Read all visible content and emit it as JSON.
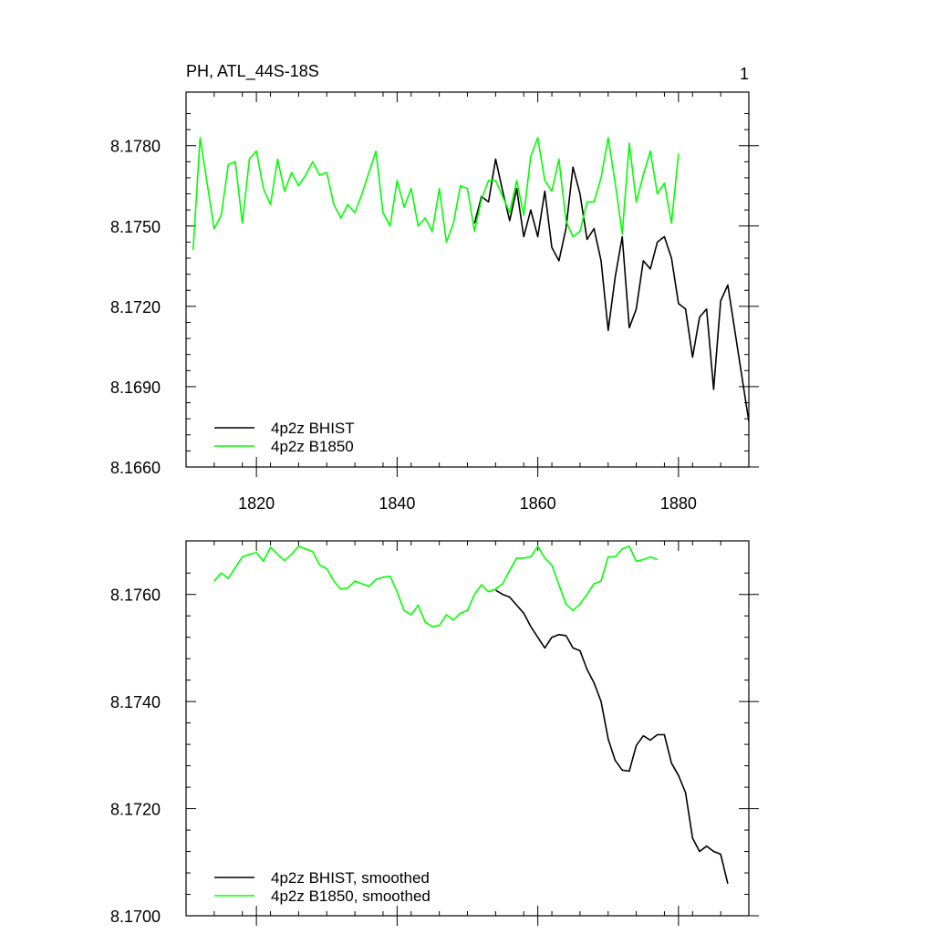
{
  "header": {
    "title": "PH, ATL_44S-18S",
    "page_number": "1"
  },
  "chart_data": [
    {
      "type": "line",
      "title": "PH, ATL_44S-18S",
      "xlabel": "",
      "ylabel": "",
      "xlim": [
        1810,
        1890
      ],
      "ylim": [
        8.166,
        8.18
      ],
      "x_ticks": [
        1820,
        1840,
        1860,
        1880
      ],
      "x_tick_labels": [
        "1820",
        "1840",
        "1860",
        "1880"
      ],
      "y_ticks": [
        8.166,
        8.169,
        8.172,
        8.175,
        8.178
      ],
      "y_tick_labels": [
        "8.1660",
        "8.1690",
        "8.1720",
        "8.1750",
        "8.1780"
      ],
      "legend_position": "bottom-left",
      "series": [
        {
          "name": "4p2z BHIST",
          "color": "#000000",
          "x_start": 1851,
          "values": [
            8.1751,
            8.1761,
            8.1759,
            8.1775,
            8.1763,
            8.1752,
            8.1764,
            8.1746,
            8.1756,
            8.1746,
            8.1763,
            8.1742,
            8.1737,
            8.1749,
            8.1772,
            8.1762,
            8.1745,
            8.1749,
            8.1737,
            8.1711,
            8.1731,
            8.1746,
            8.1712,
            8.1719,
            8.1737,
            8.1734,
            8.1744,
            8.1746,
            8.1738,
            8.1721,
            8.1719,
            8.1701,
            8.1716,
            8.1719,
            8.1689,
            8.1722,
            8.1728,
            8.1711,
            8.1694,
            8.1677
          ]
        },
        {
          "name": "4p2z B1850",
          "color": "#00ff00",
          "x_start": 1811,
          "values": [
            8.1741,
            8.1783,
            8.1766,
            8.1749,
            8.1754,
            8.1773,
            8.1774,
            8.1751,
            8.1775,
            8.1778,
            8.1764,
            8.1758,
            8.1775,
            8.1763,
            8.177,
            8.1765,
            8.1769,
            8.1774,
            8.1769,
            8.177,
            8.1758,
            8.1753,
            8.1758,
            8.1755,
            8.1762,
            8.177,
            8.1778,
            8.1755,
            8.175,
            8.1767,
            8.1757,
            8.1764,
            8.175,
            8.1753,
            8.1748,
            8.1764,
            8.1744,
            8.1751,
            8.1765,
            8.1764,
            8.1748,
            8.176,
            8.1767,
            8.1767,
            8.1761,
            8.1755,
            8.1767,
            8.1754,
            8.1776,
            8.1783,
            8.1767,
            8.1763,
            8.1775,
            8.1752,
            8.1746,
            8.1748,
            8.1759,
            8.1759,
            8.1768,
            8.1783,
            8.1766,
            8.1747,
            8.1781,
            8.1759,
            8.1769,
            8.1778,
            8.1762,
            8.1766,
            8.1751,
            8.1777
          ]
        }
      ]
    },
    {
      "type": "line",
      "title": "",
      "xlabel": "",
      "ylabel": "",
      "xlim": [
        1810,
        1890
      ],
      "ylim": [
        8.17,
        8.177
      ],
      "x_ticks": [
        1820,
        1840,
        1860,
        1880
      ],
      "x_tick_labels": [],
      "y_ticks": [
        8.17,
        8.172,
        8.174,
        8.176
      ],
      "y_tick_labels": [
        "8.1700",
        "8.1720",
        "8.1740",
        "8.1760"
      ],
      "legend_position": "bottom-left",
      "series": [
        {
          "name": "4p2z BHIST, smoothed",
          "color": "#000000",
          "x_start": 1854,
          "values": [
            8.17608,
            8.176,
            8.17595,
            8.1758,
            8.17565,
            8.1754,
            8.1752,
            8.175,
            8.1752,
            8.17525,
            8.17523,
            8.175,
            8.17495,
            8.1746,
            8.17435,
            8.174,
            8.1733,
            8.1729,
            8.17272,
            8.1727,
            8.17318,
            8.17336,
            8.17328,
            8.17338,
            8.17338,
            8.17285,
            8.17262,
            8.1723,
            8.17145,
            8.1712,
            8.1713,
            8.1712,
            8.17115,
            8.1706
          ]
        },
        {
          "name": "4p2z B1850, smoothed",
          "color": "#00ff00",
          "x_start": 1814,
          "values": [
            8.17625,
            8.1764,
            8.1763,
            8.1765,
            8.1767,
            8.17675,
            8.17678,
            8.17662,
            8.17688,
            8.17675,
            8.17663,
            8.17675,
            8.1769,
            8.17685,
            8.1768,
            8.17655,
            8.17648,
            8.17625,
            8.1761,
            8.17612,
            8.17625,
            8.1762,
            8.17615,
            8.17628,
            8.17632,
            8.17634,
            8.17605,
            8.1757,
            8.17562,
            8.1758,
            8.17548,
            8.1754,
            8.17542,
            8.17562,
            8.17552,
            8.17565,
            8.1757,
            8.176,
            8.17618,
            8.17605,
            8.1761,
            8.1762,
            8.17645,
            8.17668,
            8.17668,
            8.1767,
            8.1769,
            8.17668,
            8.17655,
            8.17618,
            8.17582,
            8.1757,
            8.17582,
            8.176,
            8.1762,
            8.17625,
            8.1767,
            8.1767,
            8.17685,
            8.1769,
            8.17662,
            8.17665,
            8.1767,
            8.17665
          ]
        }
      ]
    }
  ]
}
